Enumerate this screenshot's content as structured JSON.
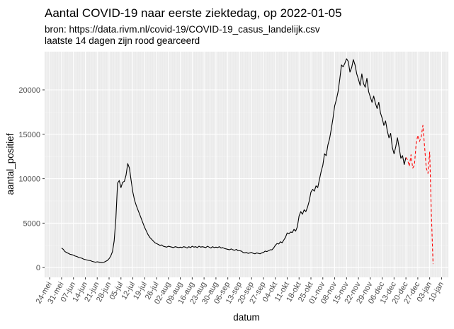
{
  "chart_data": {
    "type": "line",
    "title": "Aantal COVID-19 naar eerste ziektedag, op 2022-01-05",
    "subtitle_lines": [
      "bron: https://data.rivm.nl/covid-19/COVID-19_casus_landelijk.csv",
      "laatste 14 dagen zijn rood gearceerd"
    ],
    "xlabel": "datum",
    "ylabel": "aantal_positief",
    "x_range": [
      "2021-05-21",
      "2022-01-14"
    ],
    "ylim": [
      -1100,
      24300
    ],
    "y_ticks": [
      0,
      5000,
      10000,
      15000,
      20000
    ],
    "x_tick_dates": [
      "2021-05-24",
      "2021-05-31",
      "2021-06-07",
      "2021-06-14",
      "2021-06-21",
      "2021-06-28",
      "2021-07-05",
      "2021-07-12",
      "2021-07-19",
      "2021-07-26",
      "2021-08-02",
      "2021-08-09",
      "2021-08-16",
      "2021-08-23",
      "2021-08-30",
      "2021-09-06",
      "2021-09-13",
      "2021-09-20",
      "2021-09-27",
      "2021-10-04",
      "2021-10-11",
      "2021-10-18",
      "2021-10-25",
      "2021-11-01",
      "2021-11-08",
      "2021-11-15",
      "2021-11-22",
      "2021-11-29",
      "2021-12-06",
      "2021-12-13",
      "2021-12-20",
      "2021-12-27",
      "2022-01-03",
      "2022-01-10"
    ],
    "x_tick_labels": [
      "24-mei",
      "31-mei",
      "07-jun",
      "14-jun",
      "21-jun",
      "28-jun",
      "05-jul",
      "12-jul",
      "19-jul",
      "26-jul",
      "02-aug",
      "09-aug",
      "16-aug",
      "23-aug",
      "30-aug",
      "06-sep",
      "13-sep",
      "20-sep",
      "27-sep",
      "04-okt",
      "11-okt",
      "18-okt",
      "25-okt",
      "01-nov",
      "08-nov",
      "15-nov",
      "22-nov",
      "29-nov",
      "06-dec",
      "13-dec",
      "20-dec",
      "27-dec",
      "03-jan",
      "10-jan"
    ],
    "grid": true,
    "colors": {
      "series": "#000000",
      "recent": "#ff0000",
      "panel": "#ebebeb",
      "grid_major": "#ffffff",
      "grid_minor": "#f5f5f5"
    },
    "series": [
      {
        "style": "solid",
        "color": "#000000",
        "points": [
          [
            "2021-05-31",
            2200
          ],
          [
            "2021-06-01",
            2050
          ],
          [
            "2021-06-02",
            1800
          ],
          [
            "2021-06-03",
            1700
          ],
          [
            "2021-06-04",
            1600
          ],
          [
            "2021-06-05",
            1500
          ],
          [
            "2021-06-06",
            1450
          ],
          [
            "2021-06-07",
            1400
          ],
          [
            "2021-06-08",
            1300
          ],
          [
            "2021-06-09",
            1250
          ],
          [
            "2021-06-10",
            1150
          ],
          [
            "2021-06-11",
            1100
          ],
          [
            "2021-06-12",
            1050
          ],
          [
            "2021-06-13",
            950
          ],
          [
            "2021-06-14",
            900
          ],
          [
            "2021-06-15",
            850
          ],
          [
            "2021-06-16",
            800
          ],
          [
            "2021-06-17",
            780
          ],
          [
            "2021-06-18",
            700
          ],
          [
            "2021-06-19",
            650
          ],
          [
            "2021-06-20",
            600
          ],
          [
            "2021-06-21",
            650
          ],
          [
            "2021-06-22",
            620
          ],
          [
            "2021-06-23",
            580
          ],
          [
            "2021-06-24",
            550
          ],
          [
            "2021-06-25",
            600
          ],
          [
            "2021-06-26",
            700
          ],
          [
            "2021-06-27",
            800
          ],
          [
            "2021-06-28",
            1000
          ],
          [
            "2021-06-29",
            1300
          ],
          [
            "2021-06-30",
            1800
          ],
          [
            "2021-07-01",
            3000
          ],
          [
            "2021-07-02",
            5500
          ],
          [
            "2021-07-03",
            9500
          ],
          [
            "2021-07-04",
            9800
          ],
          [
            "2021-07-05",
            9000
          ],
          [
            "2021-07-06",
            9600
          ],
          [
            "2021-07-07",
            9700
          ],
          [
            "2021-07-08",
            10400
          ],
          [
            "2021-07-09",
            11700
          ],
          [
            "2021-07-10",
            11200
          ],
          [
            "2021-07-11",
            9800
          ],
          [
            "2021-07-12",
            8500
          ],
          [
            "2021-07-13",
            7600
          ],
          [
            "2021-07-14",
            7000
          ],
          [
            "2021-07-15",
            6500
          ],
          [
            "2021-07-16",
            6000
          ],
          [
            "2021-07-17",
            5500
          ],
          [
            "2021-07-18",
            5000
          ],
          [
            "2021-07-19",
            4500
          ],
          [
            "2021-07-20",
            4100
          ],
          [
            "2021-07-21",
            3700
          ],
          [
            "2021-07-22",
            3400
          ],
          [
            "2021-07-23",
            3200
          ],
          [
            "2021-07-24",
            3000
          ],
          [
            "2021-07-25",
            2800
          ],
          [
            "2021-07-26",
            2700
          ],
          [
            "2021-07-27",
            2600
          ],
          [
            "2021-07-28",
            2500
          ],
          [
            "2021-07-29",
            2550
          ],
          [
            "2021-07-30",
            2400
          ],
          [
            "2021-07-31",
            2350
          ],
          [
            "2021-08-01",
            2300
          ],
          [
            "2021-08-02",
            2400
          ],
          [
            "2021-08-03",
            2350
          ],
          [
            "2021-08-04",
            2300
          ],
          [
            "2021-08-05",
            2250
          ],
          [
            "2021-08-06",
            2350
          ],
          [
            "2021-08-07",
            2300
          ],
          [
            "2021-08-08",
            2250
          ],
          [
            "2021-08-09",
            2300
          ],
          [
            "2021-08-10",
            2250
          ],
          [
            "2021-08-11",
            2350
          ],
          [
            "2021-08-12",
            2300
          ],
          [
            "2021-08-13",
            2200
          ],
          [
            "2021-08-14",
            2350
          ],
          [
            "2021-08-15",
            2250
          ],
          [
            "2021-08-16",
            2400
          ],
          [
            "2021-08-17",
            2300
          ],
          [
            "2021-08-18",
            2350
          ],
          [
            "2021-08-19",
            2250
          ],
          [
            "2021-08-20",
            2400
          ],
          [
            "2021-08-21",
            2300
          ],
          [
            "2021-08-22",
            2350
          ],
          [
            "2021-08-23",
            2300
          ],
          [
            "2021-08-24",
            2250
          ],
          [
            "2021-08-25",
            2400
          ],
          [
            "2021-08-26",
            2300
          ],
          [
            "2021-08-27",
            2200
          ],
          [
            "2021-08-28",
            2350
          ],
          [
            "2021-08-29",
            2250
          ],
          [
            "2021-08-30",
            2300
          ],
          [
            "2021-08-31",
            2250
          ],
          [
            "2021-09-01",
            2350
          ],
          [
            "2021-09-02",
            2200
          ],
          [
            "2021-09-03",
            2250
          ],
          [
            "2021-09-04",
            2150
          ],
          [
            "2021-09-05",
            2100
          ],
          [
            "2021-09-06",
            2050
          ],
          [
            "2021-09-07",
            2000
          ],
          [
            "2021-09-08",
            2100
          ],
          [
            "2021-09-09",
            2000
          ],
          [
            "2021-09-10",
            1950
          ],
          [
            "2021-09-11",
            2050
          ],
          [
            "2021-09-12",
            1900
          ],
          [
            "2021-09-13",
            1900
          ],
          [
            "2021-09-14",
            1850
          ],
          [
            "2021-09-15",
            1700
          ],
          [
            "2021-09-16",
            1650
          ],
          [
            "2021-09-17",
            1700
          ],
          [
            "2021-09-18",
            1600
          ],
          [
            "2021-09-19",
            1650
          ],
          [
            "2021-09-20",
            1700
          ],
          [
            "2021-09-21",
            1600
          ],
          [
            "2021-09-22",
            1550
          ],
          [
            "2021-09-23",
            1650
          ],
          [
            "2021-09-24",
            1600
          ],
          [
            "2021-09-25",
            1550
          ],
          [
            "2021-09-26",
            1650
          ],
          [
            "2021-09-27",
            1700
          ],
          [
            "2021-09-28",
            1850
          ],
          [
            "2021-09-29",
            1800
          ],
          [
            "2021-09-30",
            1900
          ],
          [
            "2021-10-01",
            2000
          ],
          [
            "2021-10-02",
            2000
          ],
          [
            "2021-10-03",
            2200
          ],
          [
            "2021-10-04",
            2500
          ],
          [
            "2021-10-05",
            2700
          ],
          [
            "2021-10-06",
            2650
          ],
          [
            "2021-10-07",
            2900
          ],
          [
            "2021-10-08",
            2800
          ],
          [
            "2021-10-09",
            3100
          ],
          [
            "2021-10-10",
            3400
          ],
          [
            "2021-10-11",
            3900
          ],
          [
            "2021-10-12",
            3800
          ],
          [
            "2021-10-13",
            4000
          ],
          [
            "2021-10-14",
            3950
          ],
          [
            "2021-10-15",
            4300
          ],
          [
            "2021-10-16",
            4100
          ],
          [
            "2021-10-17",
            4600
          ],
          [
            "2021-10-18",
            5800
          ],
          [
            "2021-10-19",
            6300
          ],
          [
            "2021-10-20",
            6000
          ],
          [
            "2021-10-21",
            6500
          ],
          [
            "2021-10-22",
            6300
          ],
          [
            "2021-10-23",
            6800
          ],
          [
            "2021-10-24",
            7500
          ],
          [
            "2021-10-25",
            8500
          ],
          [
            "2021-10-26",
            8800
          ],
          [
            "2021-10-27",
            8600
          ],
          [
            "2021-10-28",
            9200
          ],
          [
            "2021-10-29",
            9000
          ],
          [
            "2021-10-30",
            9900
          ],
          [
            "2021-10-31",
            10800
          ],
          [
            "2021-11-01",
            11500
          ],
          [
            "2021-11-02",
            12800
          ],
          [
            "2021-11-03",
            12600
          ],
          [
            "2021-11-04",
            13800
          ],
          [
            "2021-11-05",
            14500
          ],
          [
            "2021-11-06",
            15600
          ],
          [
            "2021-11-07",
            16800
          ],
          [
            "2021-11-08",
            18200
          ],
          [
            "2021-11-09",
            18900
          ],
          [
            "2021-11-10",
            19800
          ],
          [
            "2021-11-11",
            21200
          ],
          [
            "2021-11-12",
            22800
          ],
          [
            "2021-11-13",
            22600
          ],
          [
            "2021-11-14",
            23000
          ],
          [
            "2021-11-15",
            23500
          ],
          [
            "2021-11-16",
            23200
          ],
          [
            "2021-11-17",
            22000
          ],
          [
            "2021-11-18",
            22500
          ],
          [
            "2021-11-19",
            23400
          ],
          [
            "2021-11-20",
            22800
          ],
          [
            "2021-11-21",
            21800
          ],
          [
            "2021-11-22",
            21200
          ],
          [
            "2021-11-23",
            20500
          ],
          [
            "2021-11-24",
            21800
          ],
          [
            "2021-11-25",
            20700
          ],
          [
            "2021-11-26",
            20300
          ],
          [
            "2021-11-27",
            21300
          ],
          [
            "2021-11-28",
            19800
          ],
          [
            "2021-11-29",
            19200
          ],
          [
            "2021-11-30",
            18600
          ],
          [
            "2021-12-01",
            19300
          ],
          [
            "2021-12-02",
            18500
          ],
          [
            "2021-12-03",
            17900
          ],
          [
            "2021-12-04",
            18600
          ],
          [
            "2021-12-05",
            17400
          ],
          [
            "2021-12-06",
            16800
          ],
          [
            "2021-12-07",
            16000
          ],
          [
            "2021-12-08",
            16500
          ],
          [
            "2021-12-09",
            15400
          ],
          [
            "2021-12-10",
            14600
          ],
          [
            "2021-12-11",
            15100
          ],
          [
            "2021-12-12",
            13500
          ],
          [
            "2021-12-13",
            12800
          ],
          [
            "2021-12-14",
            13600
          ],
          [
            "2021-12-15",
            14600
          ],
          [
            "2021-12-16",
            13500
          ],
          [
            "2021-12-17",
            12300
          ],
          [
            "2021-12-18",
            12600
          ],
          [
            "2021-12-19",
            11600
          ],
          [
            "2021-12-20",
            12400
          ]
        ]
      },
      {
        "style": "dashed",
        "color": "#ff0000",
        "points": [
          [
            "2021-12-20",
            12400
          ],
          [
            "2021-12-21",
            12100
          ],
          [
            "2021-12-22",
            11400
          ],
          [
            "2021-12-23",
            12700
          ],
          [
            "2021-12-24",
            11200
          ],
          [
            "2021-12-25",
            11500
          ],
          [
            "2021-12-26",
            13900
          ],
          [
            "2021-12-27",
            14900
          ],
          [
            "2021-12-28",
            14200
          ],
          [
            "2021-12-29",
            14700
          ],
          [
            "2021-12-30",
            16000
          ],
          [
            "2021-12-31",
            13600
          ],
          [
            "2022-01-01",
            11200
          ],
          [
            "2022-01-02",
            10600
          ],
          [
            "2022-01-03",
            13000
          ],
          [
            "2022-01-04",
            6000
          ],
          [
            "2022-01-05",
            400
          ]
        ]
      }
    ]
  }
}
